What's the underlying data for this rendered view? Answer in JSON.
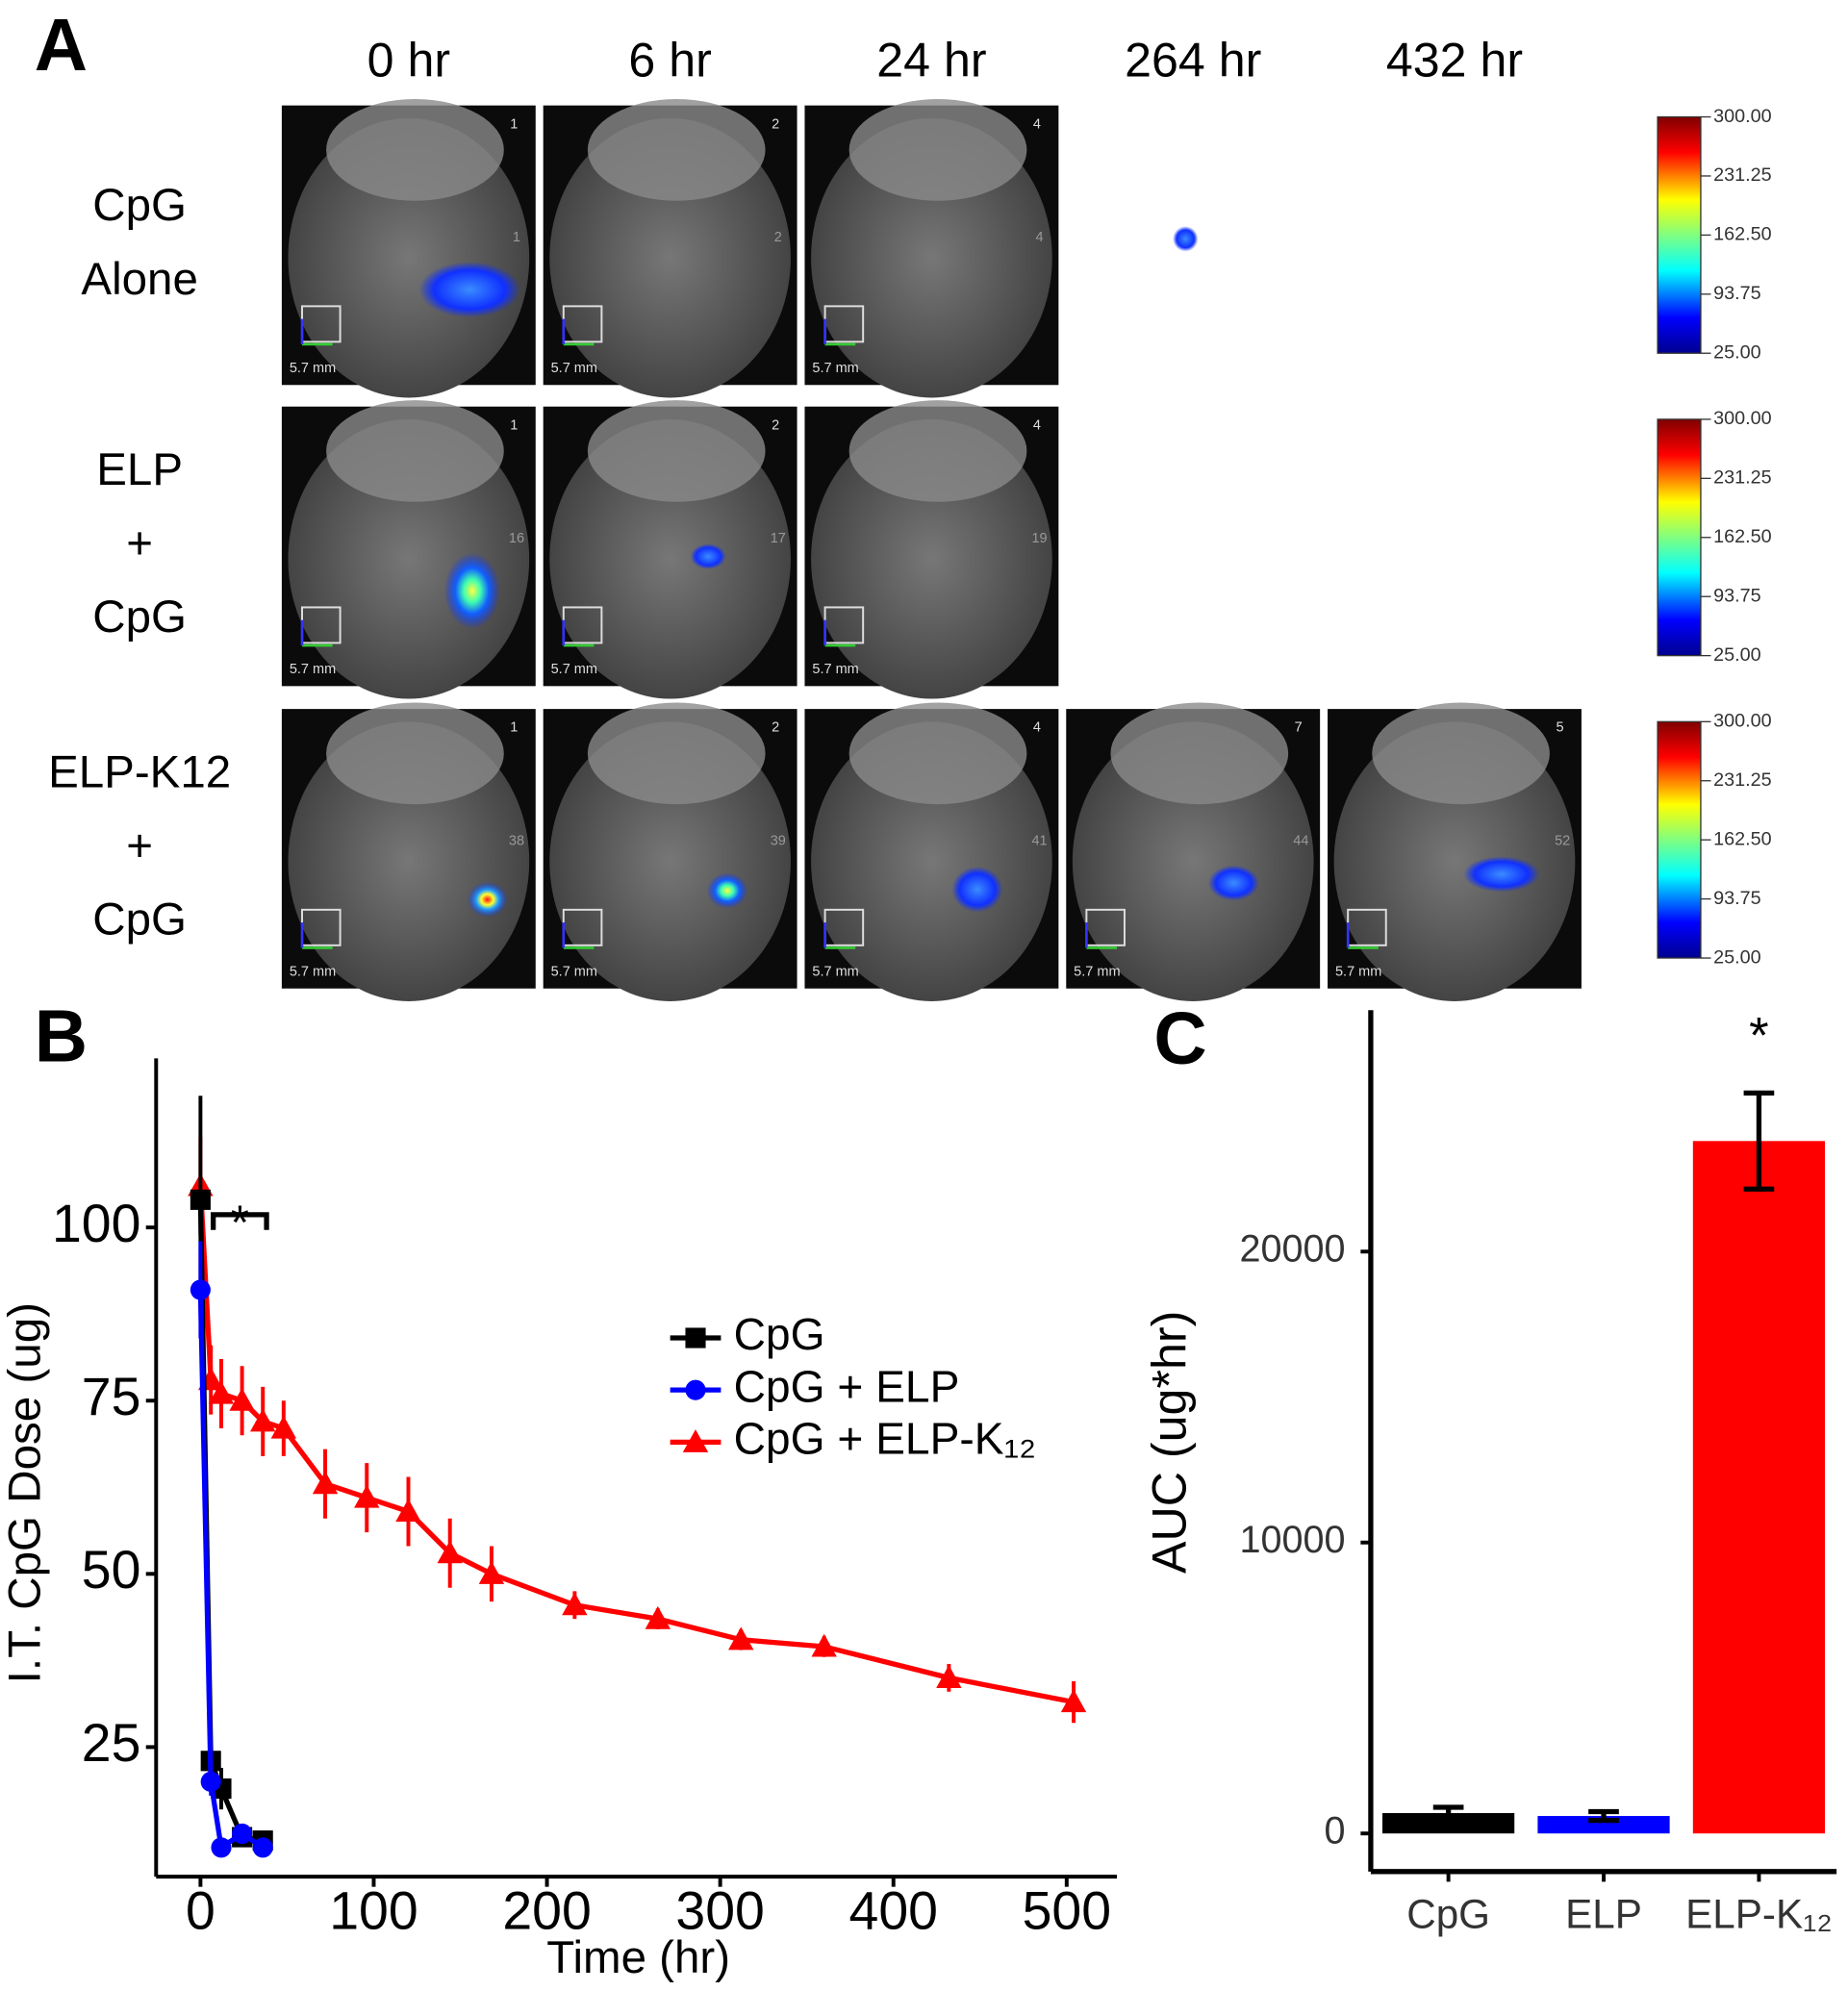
{
  "panel_labels": [
    "A",
    "B",
    "C"
  ],
  "panel_a": {
    "columns": [
      "0 hr",
      "6 hr",
      "24 hr",
      "264 hr",
      "432 hr"
    ],
    "rows": [
      {
        "label": [
          "CpG",
          "Alone"
        ],
        "images": [
          {
            "id": "1",
            "roi": "1",
            "scale": "5.7 mm"
          },
          {
            "id": "2",
            "roi": "2",
            "scale": "5.7 mm"
          },
          {
            "id": "4",
            "roi": "4",
            "scale": "5.7 mm"
          }
        ]
      },
      {
        "label": [
          "ELP",
          "+",
          "CpG"
        ],
        "images": [
          {
            "id": "1",
            "roi": "16",
            "scale": "5.7 mm"
          },
          {
            "id": "2",
            "roi": "17",
            "scale": "5.7 mm"
          },
          {
            "id": "4",
            "roi": "19",
            "scale": "5.7 mm"
          }
        ]
      },
      {
        "label": [
          "ELP-K12",
          "+",
          "CpG"
        ],
        "images": [
          {
            "id": "1",
            "roi": "38",
            "scale": "5.7 mm"
          },
          {
            "id": "2",
            "roi": "39",
            "scale": "5.7 mm"
          },
          {
            "id": "4",
            "roi": "41",
            "scale": "5.7 mm"
          },
          {
            "id": "7",
            "roi": "44",
            "scale": "5.7 mm"
          },
          {
            "id": "5",
            "roi": "52",
            "scale": "5.7 mm"
          }
        ]
      }
    ],
    "colorbar": {
      "lim": [
        25,
        300
      ],
      "ticks": [
        {
          "value": 300,
          "label": "300.00"
        },
        {
          "value": 231.25,
          "label": "231.25"
        },
        {
          "value": 162.5,
          "label": "162.50"
        },
        {
          "value": 93.75,
          "label": "93.75"
        },
        {
          "value": 25,
          "label": "25.00"
        }
      ]
    }
  },
  "chart_data": [
    {
      "type": "line",
      "x_label": "Time (hr)",
      "y_label": "I.T. CpG Dose (ug)",
      "xlim": [
        -25.6,
        529
      ],
      "ylim": [
        6.3,
        124.4
      ],
      "xticks": [
        0,
        100,
        200,
        300,
        400,
        500
      ],
      "yticks": [
        25,
        50,
        75,
        100
      ],
      "legend": "right",
      "annotation": "*",
      "series": [
        {
          "name": "CpG",
          "color": "#000000",
          "marker": "square",
          "x": [
            0,
            6,
            12,
            24,
            36
          ],
          "values": [
            104,
            23,
            19,
            12,
            11.5
          ],
          "errors": [
            15,
            2,
            3,
            1,
            1
          ]
        },
        {
          "name": "CpG + ELP",
          "color": "#0000ff",
          "marker": "circle",
          "x": [
            0,
            6,
            12,
            24,
            36
          ],
          "values": [
            91,
            20,
            10.5,
            12.5,
            10.5
          ],
          "errors": [
            7,
            2,
            1,
            1,
            1
          ]
        },
        {
          "name": "CpG + ELP-K₁₂",
          "color": "#ff0000",
          "marker": "triangle",
          "x": [
            0,
            6,
            12,
            24,
            36,
            48,
            72,
            96,
            120,
            144,
            168,
            216,
            264,
            312,
            360,
            432,
            504
          ],
          "values": [
            106,
            78,
            76,
            75,
            72,
            71,
            63,
            61,
            59,
            53,
            50,
            45.5,
            43.5,
            40.5,
            39.5,
            35,
            31.5
          ],
          "errors": [
            7,
            5,
            5,
            5,
            5,
            4,
            5,
            5,
            5,
            5,
            4,
            2,
            1.5,
            1.5,
            1.5,
            2,
            3
          ]
        }
      ]
    },
    {
      "type": "bar",
      "y_label": "AUC (ug*hr)",
      "categories": [
        "CpG",
        "ELP",
        "ELP-K₁₂"
      ],
      "values": [
        700,
        600,
        23800
      ],
      "errors": [
        200,
        150,
        1650
      ],
      "colors": [
        "#000000",
        "#0000ff",
        "#ff0000"
      ],
      "ylim": [
        -1310,
        28300
      ],
      "yticks": [
        0,
        10000,
        20000
      ],
      "annotation": "*"
    }
  ]
}
